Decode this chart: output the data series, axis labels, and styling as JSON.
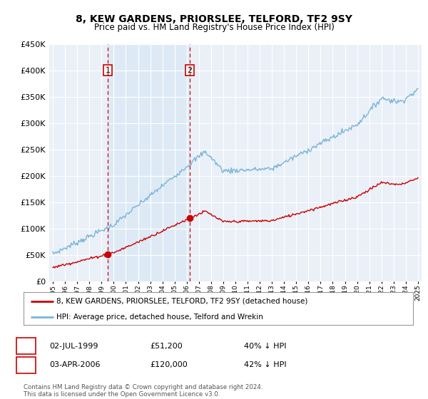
{
  "title": "8, KEW GARDENS, PRIORSLEE, TELFORD, TF2 9SY",
  "subtitle": "Price paid vs. HM Land Registry's House Price Index (HPI)",
  "legend_line1": "8, KEW GARDENS, PRIORSLEE, TELFORD, TF2 9SY (detached house)",
  "legend_line2": "HPI: Average price, detached house, Telford and Wrekin",
  "annotation1_date": "02-JUL-1999",
  "annotation1_price": "£51,200",
  "annotation1_note": "40% ↓ HPI",
  "annotation2_date": "03-APR-2006",
  "annotation2_price": "£120,000",
  "annotation2_note": "42% ↓ HPI",
  "copyright": "Contains HM Land Registry data © Crown copyright and database right 2024.\nThis data is licensed under the Open Government Licence v3.0.",
  "hpi_color": "#7ab4d8",
  "price_color": "#cc0000",
  "shade_color": "#ddeaf5",
  "background_color": "#ffffff",
  "plot_bg_color": "#eaf0f8",
  "grid_color": "#ffffff",
  "ylim": [
    0,
    450000
  ],
  "yticks": [
    0,
    50000,
    100000,
    150000,
    200000,
    250000,
    300000,
    350000,
    400000,
    450000
  ],
  "sale1_x": 1999.5,
  "sale1_y": 51200,
  "sale2_x": 2006.25,
  "sale2_y": 120000,
  "xmin": 1995,
  "xmax": 2025
}
